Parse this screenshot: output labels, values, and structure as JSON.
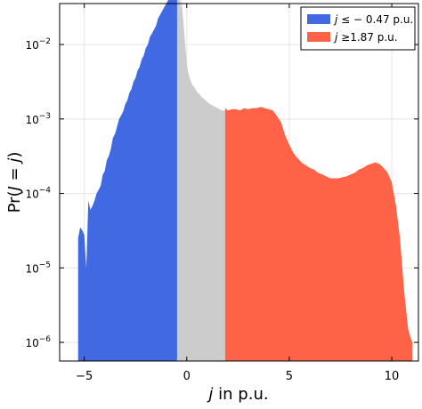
{
  "chart_data": {
    "type": "area",
    "xlabel": "j in p.u.",
    "ylabel": "Pr(J = j)",
    "xlim": [
      -6.2,
      11.3
    ],
    "ylim_log10": [
      -6.25,
      -1.45
    ],
    "y_scale": "log",
    "grid": true,
    "legend_position": "top-right",
    "x_ticks": [
      {
        "value": -5,
        "label": "−5"
      },
      {
        "value": 0,
        "label": "0"
      },
      {
        "value": 5,
        "label": "5"
      },
      {
        "value": 10,
        "label": "10"
      }
    ],
    "y_ticks": [
      {
        "exp": -6,
        "base": "10",
        "exp_label": "−6"
      },
      {
        "exp": -5,
        "base": "10",
        "exp_label": "−5"
      },
      {
        "exp": -4,
        "base": "10",
        "exp_label": "−4"
      },
      {
        "exp": -3,
        "base": "10",
        "exp_label": "−3"
      },
      {
        "exp": -2,
        "base": "10",
        "exp_label": "−2"
      }
    ],
    "series": [
      {
        "name": "j ≤ − 0.47 p.u.",
        "color": "#4169e1",
        "x": [
          -5.3,
          -5.2,
          -5.1,
          -5.0,
          -4.9,
          -4.8,
          -4.7,
          -4.6,
          -4.5,
          -4.4,
          -4.3,
          -4.2,
          -4.1,
          -4.0,
          -3.9,
          -3.8,
          -3.7,
          -3.6,
          -3.5,
          -3.4,
          -3.3,
          -3.2,
          -3.1,
          -3.0,
          -2.9,
          -2.8,
          -2.7,
          -2.6,
          -2.5,
          -2.4,
          -2.3,
          -2.2,
          -2.1,
          -2.0,
          -1.9,
          -1.8,
          -1.7,
          -1.6,
          -1.5,
          -1.4,
          -1.3,
          -1.2,
          -1.1,
          -1.0,
          -0.9,
          -0.8,
          -0.7,
          -0.6,
          -0.47
        ],
        "y": [
          2.5e-05,
          3.5e-05,
          3.2e-05,
          2.8e-05,
          1e-05,
          8e-05,
          6e-05,
          6.8e-05,
          8e-05,
          0.0001,
          0.000112,
          0.000126,
          0.000178,
          0.0002,
          0.00028,
          0.00032,
          0.0004,
          0.00056,
          0.00063,
          0.00079,
          0.001,
          0.00112,
          0.00126,
          0.00158,
          0.00178,
          0.00224,
          0.00251,
          0.00316,
          0.00355,
          0.00447,
          0.00501,
          0.00631,
          0.00708,
          0.00891,
          0.01,
          0.0126,
          0.0141,
          0.0158,
          0.0178,
          0.0224,
          0.0251,
          0.0282,
          0.0316,
          0.0355,
          0.0398,
          0.0447,
          0.0501,
          0.0562,
          0.0631
        ]
      },
      {
        "name": "",
        "color": "#cccccc",
        "x": [
          -0.47,
          -0.4,
          -0.35,
          -0.3,
          -0.25,
          -0.2,
          -0.15,
          -0.1,
          -0.05,
          0.0,
          0.05,
          0.1,
          0.2,
          0.3,
          0.4,
          0.5,
          0.6,
          0.7,
          0.8,
          0.9,
          1.0,
          1.1,
          1.2,
          1.3,
          1.4,
          1.5,
          1.6,
          1.7,
          1.87
        ],
        "y": [
          0.0631,
          0.04,
          0.06,
          0.03,
          0.04,
          0.026,
          0.018,
          0.012,
          0.008,
          0.0056,
          0.0045,
          0.0039,
          0.0032,
          0.0028,
          0.0026,
          0.0023,
          0.0022,
          0.002,
          0.0019,
          0.0018,
          0.0017,
          0.0016,
          0.00155,
          0.0015,
          0.00145,
          0.0014,
          0.00135,
          0.0013,
          0.0013
        ]
      },
      {
        "name": "j ≥1.87 p.u.",
        "color": "#ff6347",
        "x": [
          1.87,
          2.0,
          2.2,
          2.4,
          2.6,
          2.8,
          3.0,
          3.2,
          3.4,
          3.6,
          3.8,
          4.0,
          4.2,
          4.4,
          4.6,
          4.8,
          5.0,
          5.2,
          5.4,
          5.6,
          5.8,
          6.0,
          6.2,
          6.4,
          6.6,
          6.8,
          7.0,
          7.2,
          7.4,
          7.6,
          7.8,
          8.0,
          8.2,
          8.4,
          8.6,
          8.8,
          9.0,
          9.2,
          9.4,
          9.6,
          9.8,
          10.0,
          10.2,
          10.4,
          10.6,
          10.8,
          10.9,
          11.0
        ],
        "y": [
          0.0014,
          0.0013,
          0.00135,
          0.00135,
          0.0013,
          0.0014,
          0.00135,
          0.0014,
          0.0014,
          0.00145,
          0.0014,
          0.00135,
          0.0013,
          0.0011,
          0.0009,
          0.0006,
          0.00045,
          0.00035,
          0.0003,
          0.00026,
          0.00024,
          0.00022,
          0.00021,
          0.00019,
          0.00018,
          0.00017,
          0.00016,
          0.00016,
          0.00016,
          0.000165,
          0.00017,
          0.00018,
          0.00019,
          0.00021,
          0.00022,
          0.00024,
          0.00025,
          0.00026,
          0.00025,
          0.00022,
          0.00019,
          0.00014,
          7e-05,
          2.5e-05,
          5e-06,
          1.5e-06,
          1.2e-06,
          1e-06
        ]
      }
    ],
    "legend": [
      {
        "prefix": "j",
        "text": " ≤ − 0.47 p.u.",
        "color": "#4169e1"
      },
      {
        "prefix": "j",
        "text": " ≥1.87 p.u.",
        "color": "#ff6347"
      }
    ]
  }
}
